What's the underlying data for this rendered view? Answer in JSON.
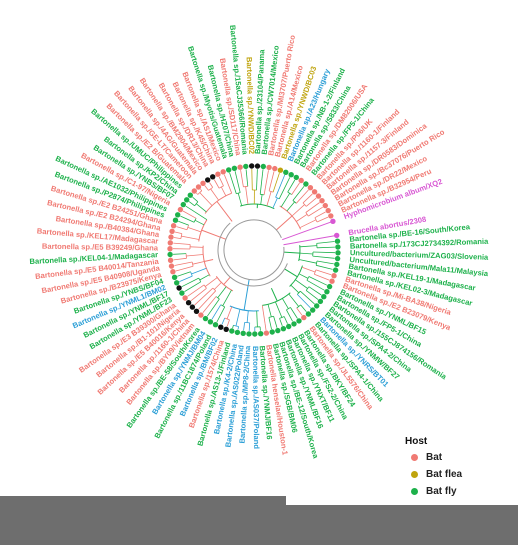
{
  "legend": {
    "title": "Host",
    "items": [
      {
        "label": "Bat",
        "color": "#f07a73"
      },
      {
        "label": "Bat flea",
        "color": "#bfa40e"
      },
      {
        "label": "Bat fly",
        "color": "#1db14b"
      }
    ]
  },
  "colors": {
    "bat": "#f07a73",
    "flea": "#bfa40e",
    "fly": "#1db14b",
    "blue": "#2c9fd6",
    "outgroup": "#d857d3",
    "black": "#111111",
    "branch": "#9a9a9a"
  },
  "leaves": [
    {
      "text": "Brucella abortus/2308",
      "c": "outgroup"
    },
    {
      "text": "Bartonella sp./BE-16/South/Korea",
      "c": "fly"
    },
    {
      "text": "Bartonella sp./173CJ2734392/Romania",
      "c": "fly"
    },
    {
      "text": "Uncultured/bacterium/ZAG03/Slovenia",
      "c": "fly"
    },
    {
      "text": "Uncultured/bacterium/Mala11/Malaysia",
      "c": "fly"
    },
    {
      "text": "Bartonella sp./KEL19-1/Madagascar",
      "c": "fly"
    },
    {
      "text": "Bartonella sp./KEL02-3/Madagascar",
      "c": "fly"
    },
    {
      "text": "Bartonella sp./Mi-BA38/Nigeria",
      "c": "bat"
    },
    {
      "text": "Bartonella sp./E2 B23079/Kenya",
      "c": "bat"
    },
    {
      "text": "Bartonella sp./YNML/BF15",
      "c": "fly"
    },
    {
      "text": "Bartonella sp./FP5-1/China",
      "c": "fly"
    },
    {
      "text": "Bartonella sp./155CJ874156/Romania",
      "c": "fly"
    },
    {
      "text": "Bartonella sp./SPA4-2/China",
      "c": "fly"
    },
    {
      "text": "Bartonella sp./YNMW/BF27",
      "c": "fly"
    },
    {
      "text": "Bartonella sp./YNRS/BT01",
      "c": "blue"
    },
    {
      "text": "Bartonella sp./SPA4-1/China",
      "c": "fly"
    },
    {
      "text": "Bartonella sp./JL5576/China",
      "c": "bat"
    },
    {
      "text": "Bartonella sp./BKY/BF24",
      "c": "fly"
    },
    {
      "text": "Bartonella sp./FS2-2/China",
      "c": "fly"
    },
    {
      "text": "Bartonella sp./YNXT/BF11",
      "c": "fly"
    },
    {
      "text": "Bartonella sp./YNML/BF16",
      "c": "fly"
    },
    {
      "text": "Bartonella sp./BE-12/South/Korea",
      "c": "fly"
    },
    {
      "text": "Bartonella sp./SGB/BM06",
      "c": "fly"
    },
    {
      "text": "Bartonella henselae/Houston-1",
      "c": "bat"
    },
    {
      "text": "Bartonella sp./YNMJ/BF16",
      "c": "fly"
    },
    {
      "text": "Bartonella sp./AS037/Poland",
      "c": "blue"
    },
    {
      "text": "Bartonella sp./MP8-2/China",
      "c": "blue"
    },
    {
      "text": "Bartonella sp./AS022/Poland",
      "c": "blue"
    },
    {
      "text": "Bartonella sp./K4-2/China",
      "c": "blue"
    },
    {
      "text": "Bartonella sp./AS13-1/Finland",
      "c": "fly"
    },
    {
      "text": "Bartonella sp./1574/China",
      "c": "bat"
    },
    {
      "text": "Bartonella sp./BM/BF02",
      "c": "blue"
    },
    {
      "text": "Bartonella sp./11BC1874/Poland",
      "c": "fly"
    },
    {
      "text": "Bartonella sp./YNMJ/BM04",
      "c": "blue"
    },
    {
      "text": "Bartonella sp./BE-58/South/Korea",
      "c": "fly"
    },
    {
      "text": "Bartonella sp./BY09/Vietnam",
      "c": "bat"
    },
    {
      "text": "Bartonella sp./1160-1/China",
      "c": "bat"
    },
    {
      "text": "Bartonella sp./E5 B40016/Kenya",
      "c": "bat"
    },
    {
      "text": "Bartonella sp./B1-101/Nigeria",
      "c": "bat"
    },
    {
      "text": "Bartonella sp./E3 B39300/Ghana",
      "c": "bat"
    },
    {
      "text": "Bartonella sp./YNML/BF23",
      "c": "fly"
    },
    {
      "text": "Bartonella sp./YNML/BF17",
      "c": "fly"
    },
    {
      "text": "Bartonella sp./YNML1/BM02",
      "c": "blue"
    },
    {
      "text": "Bartonella sp./YNBS/BF04",
      "c": "fly"
    },
    {
      "text": "Bartonella sp./B23975/Kenya",
      "c": "bat"
    },
    {
      "text": "Bartonella sp./E5 B40908/Uganda",
      "c": "bat"
    },
    {
      "text": "Bartonella sp./E5 B40014/Tanzania",
      "c": "bat"
    },
    {
      "text": "Bartonella sp./KEL04-1/Madagascar",
      "c": "fly"
    },
    {
      "text": "Bartonella sp./E5 B39249/Ghana",
      "c": "bat"
    },
    {
      "text": "Bartonella sp./KEL17/Madagascar",
      "c": "bat"
    },
    {
      "text": "Bartonella sp./B40384/Ghana",
      "c": "bat"
    },
    {
      "text": "Bartonella sp./E2 B24294/Ghana",
      "c": "bat"
    },
    {
      "text": "Bartonella sp./E2 B24251/Ghana",
      "c": "bat"
    },
    {
      "text": "Bartonella sp./P2874/Philippines",
      "c": "fly"
    },
    {
      "text": "Bartonella sp./AE1032/Philippines",
      "c": "fly"
    },
    {
      "text": "Bartonella sp./C1-97/Nigeria",
      "c": "bat"
    },
    {
      "text": "Bartonella sp./YNBS/BF07",
      "c": "fly"
    },
    {
      "text": "Bartonella sp./KP2/China",
      "c": "fly"
    },
    {
      "text": "Bartonella sp./UMUC/Philippines",
      "c": "fly"
    },
    {
      "text": "Bartonella sp./E2 B/Guatemala",
      "c": "bat"
    },
    {
      "text": "Bartonella sp./GE-LT/Cameroon",
      "c": "bat"
    },
    {
      "text": "Bartonella sp./4AG/Guatemala",
      "c": "bat"
    },
    {
      "text": "Bartonella sp./BM2904/Mexico",
      "c": "bat"
    },
    {
      "text": "Bartonella sp./DR13/China",
      "c": "bat"
    },
    {
      "text": "Bartonella sp./K45/China",
      "c": "bat"
    },
    {
      "text": "Bartonella sp./AS1/Mexico",
      "c": "bat"
    },
    {
      "text": "Bartonella sp./Myotis/Guatemala",
      "c": "fly"
    },
    {
      "text": "Bartonella sp./HZ07/China",
      "c": "fly"
    },
    {
      "text": "Bartonella sp./SD117/China",
      "c": "bat"
    },
    {
      "text": "Bartonella sp./15aCJ35366/Romania",
      "c": "fly"
    },
    {
      "text": "Bartonella sp./YNWD/BC02",
      "c": "flea"
    },
    {
      "text": "Bartonella sp./23104/Panama",
      "c": "fly"
    },
    {
      "text": "Bartonella sp./CW7014/Mexico",
      "c": "fly"
    },
    {
      "text": "Bartonella sp./MI3707/Puerto Rico",
      "c": "bat"
    },
    {
      "text": "Bartonella sp./A14/Mexico",
      "c": "bat"
    },
    {
      "text": "Bartonella sp./YNWD/BC03",
      "c": "flea"
    },
    {
      "text": "Bartonella sp./A23/Hungary",
      "c": "blue"
    },
    {
      "text": "Bartonella sp./NB-1-2/Finland",
      "c": "fly"
    },
    {
      "text": "Bartonella sp./S833/China",
      "c": "fly"
    },
    {
      "text": "Bartonella sp./DM82006/USA",
      "c": "bat"
    },
    {
      "text": "Bartonella sp./FP5-1/China",
      "c": "fly"
    },
    {
      "text": "Bartonella sp./P06/UK",
      "c": "bat"
    },
    {
      "text": "Bartonella sp./1160-1/Finland",
      "c": "bat"
    },
    {
      "text": "Bartonella sp./1157-3/Finland",
      "c": "bat"
    },
    {
      "text": "Bartonella sp./DR0583/Dominica",
      "c": "bat"
    },
    {
      "text": "Bartonella sp./Bc37076/Puerto Rico",
      "c": "bat"
    },
    {
      "text": "Bartonella sp./DR22/Mexico",
      "c": "bat"
    },
    {
      "text": "Bartonella sp./B32954/Peru",
      "c": "bat"
    },
    {
      "text": "Hyphomicrobium album/XQ2",
      "c": "outgroup"
    }
  ]
}
